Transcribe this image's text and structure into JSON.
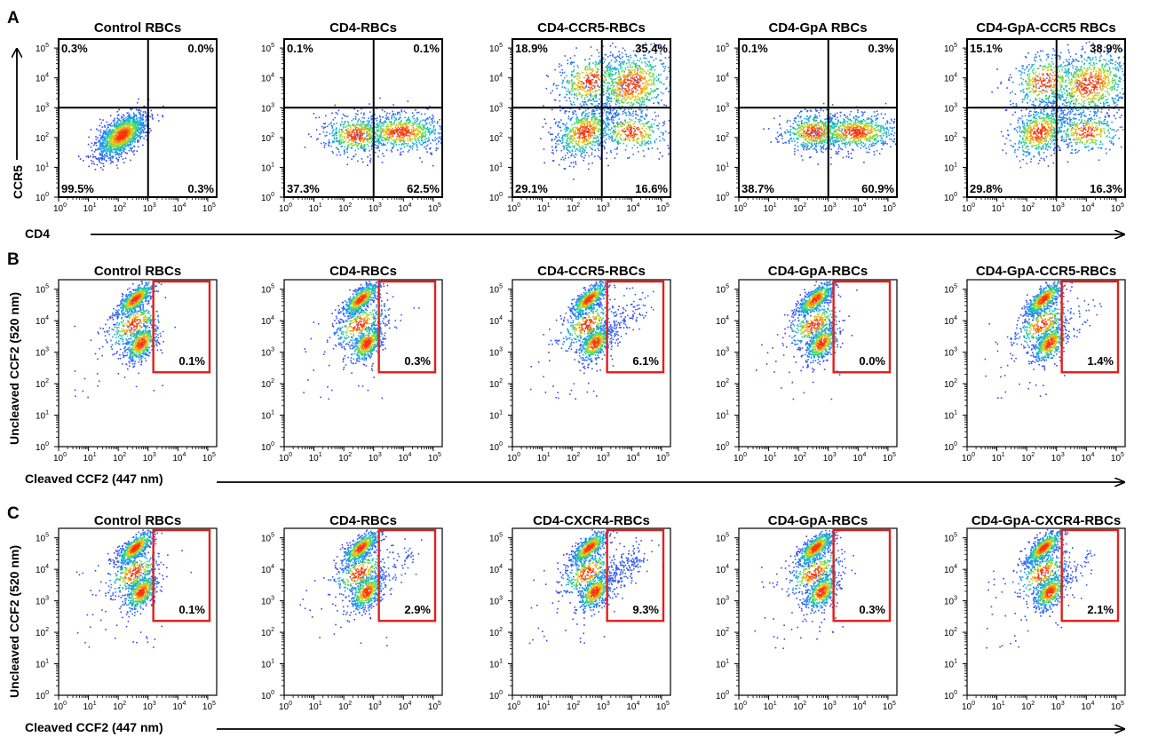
{
  "figure": {
    "panels": [
      {
        "letter": "A",
        "xlabel": "CD4",
        "ylabel": "CCR5",
        "kind": "quadrant",
        "plots": [
          {
            "title": "Control RBCs",
            "quadrants": {
              "ul": "0.3%",
              "ur": "0.0%",
              "ll": "99.5%",
              "lr": "0.3%"
            }
          },
          {
            "title": "CD4-RBCs",
            "quadrants": {
              "ul": "0.1%",
              "ur": "0.1%",
              "ll": "37.3%",
              "lr": "62.5%"
            }
          },
          {
            "title": "CD4-CCR5-RBCs",
            "quadrants": {
              "ul": "18.9%",
              "ur": "35.4%",
              "ll": "29.1%",
              "lr": "16.6%"
            }
          },
          {
            "title": "CD4-GpA RBCs",
            "quadrants": {
              "ul": "0.1%",
              "ur": "0.3%",
              "ll": "38.7%",
              "lr": "60.9%"
            }
          },
          {
            "title": "CD4-GpA-CCR5 RBCs",
            "quadrants": {
              "ul": "15.1%",
              "ur": "38.9%",
              "ll": "29.8%",
              "lr": "16.3%"
            }
          }
        ]
      },
      {
        "letter": "B",
        "xlabel": "Cleaved CCF2 (447 nm)",
        "ylabel": "Uncleaved CCF2 (520 nm)",
        "kind": "gate",
        "plots": [
          {
            "title": "Control RBCs",
            "gate_value": "0.1%"
          },
          {
            "title": "CD4-RBCs",
            "gate_value": "0.3%"
          },
          {
            "title": "CD4-CCR5-RBCs",
            "gate_value": "6.1%"
          },
          {
            "title": "CD4-GpA-RBCs",
            "gate_value": "0.0%"
          },
          {
            "title": "CD4-GpA-CCR5-RBCs",
            "gate_value": "1.4%"
          }
        ]
      },
      {
        "letter": "C",
        "xlabel": "Cleaved CCF2 (447 nm)",
        "ylabel": "Uncleaved CCF2 (520 nm)",
        "kind": "gate",
        "plots": [
          {
            "title": "Control RBCs",
            "gate_value": "0.1%"
          },
          {
            "title": "CD4-RBCs",
            "gate_value": "2.9%"
          },
          {
            "title": "CD4-CXCR4-RBCs",
            "gate_value": "9.3%"
          },
          {
            "title": "CD4-GpA-RBCs",
            "gate_value": "0.3%"
          },
          {
            "title": "CD4-GpA-CXCR4-RBCs",
            "gate_value": "2.1%"
          }
        ]
      }
    ],
    "tick_labels": [
      "10",
      "10",
      "10",
      "10",
      "10",
      "10"
    ],
    "tick_exponents": [
      "0",
      "1",
      "2",
      "3",
      "4",
      "5"
    ],
    "colors": {
      "gate": "#e0201b",
      "axis": "#000000",
      "density_low": "#3a3df0",
      "density_high": "#ff2a00"
    }
  },
  "chart_data": [
    {
      "type": "scatter",
      "panel": "A",
      "title": "Control RBCs",
      "xlabel": "CD4",
      "ylabel": "CCR5",
      "xscale": "log",
      "yscale": "log",
      "xlim": [
        1,
        200000
      ],
      "ylim": [
        1,
        200000
      ],
      "quadrant_gate": {
        "x": 1000,
        "y": 1000
      },
      "quadrants": {
        "ul": 0.3,
        "ur": 0.0,
        "ll": 99.5,
        "lr": 0.3
      }
    },
    {
      "type": "scatter",
      "panel": "A",
      "title": "CD4-RBCs",
      "xlabel": "CD4",
      "ylabel": "CCR5",
      "xscale": "log",
      "yscale": "log",
      "xlim": [
        1,
        200000
      ],
      "ylim": [
        1,
        200000
      ],
      "quadrant_gate": {
        "x": 1000,
        "y": 1000
      },
      "quadrants": {
        "ul": 0.1,
        "ur": 0.1,
        "ll": 37.3,
        "lr": 62.5
      }
    },
    {
      "type": "scatter",
      "panel": "A",
      "title": "CD4-CCR5-RBCs",
      "xlabel": "CD4",
      "ylabel": "CCR5",
      "xscale": "log",
      "yscale": "log",
      "xlim": [
        1,
        200000
      ],
      "ylim": [
        1,
        200000
      ],
      "quadrant_gate": {
        "x": 1000,
        "y": 1000
      },
      "quadrants": {
        "ul": 18.9,
        "ur": 35.4,
        "ll": 29.1,
        "lr": 16.6
      }
    },
    {
      "type": "scatter",
      "panel": "A",
      "title": "CD4-GpA RBCs",
      "xlabel": "CD4",
      "ylabel": "CCR5",
      "xscale": "log",
      "yscale": "log",
      "xlim": [
        1,
        200000
      ],
      "ylim": [
        1,
        200000
      ],
      "quadrant_gate": {
        "x": 1000,
        "y": 1000
      },
      "quadrants": {
        "ul": 0.1,
        "ur": 0.3,
        "ll": 38.7,
        "lr": 60.9
      }
    },
    {
      "type": "scatter",
      "panel": "A",
      "title": "CD4-GpA-CCR5 RBCs",
      "xlabel": "CD4",
      "ylabel": "CCR5",
      "xscale": "log",
      "yscale": "log",
      "xlim": [
        1,
        200000
      ],
      "ylim": [
        1,
        200000
      ],
      "quadrant_gate": {
        "x": 1000,
        "y": 1000
      },
      "quadrants": {
        "ul": 15.1,
        "ur": 38.9,
        "ll": 29.8,
        "lr": 16.3
      }
    },
    {
      "type": "scatter",
      "panel": "B",
      "title": "Control RBCs",
      "xlabel": "Cleaved CCF2 (447 nm)",
      "ylabel": "Uncleaved CCF2 (520 nm)",
      "xscale": "log",
      "yscale": "log",
      "xlim": [
        1,
        200000
      ],
      "ylim": [
        1,
        200000
      ],
      "gate": {
        "x": [
          1500,
          200000
        ],
        "y": [
          230,
          220000
        ]
      },
      "gate_percent": 0.1
    },
    {
      "type": "scatter",
      "panel": "B",
      "title": "CD4-RBCs",
      "xlabel": "Cleaved CCF2 (447 nm)",
      "ylabel": "Uncleaved CCF2 (520 nm)",
      "xscale": "log",
      "yscale": "log",
      "xlim": [
        1,
        200000
      ],
      "ylim": [
        1,
        200000
      ],
      "gate": {
        "x": [
          1500,
          200000
        ],
        "y": [
          230,
          220000
        ]
      },
      "gate_percent": 0.3
    },
    {
      "type": "scatter",
      "panel": "B",
      "title": "CD4-CCR5-RBCs",
      "xlabel": "Cleaved CCF2 (447 nm)",
      "ylabel": "Uncleaved CCF2 (520 nm)",
      "xscale": "log",
      "yscale": "log",
      "xlim": [
        1,
        200000
      ],
      "ylim": [
        1,
        200000
      ],
      "gate": {
        "x": [
          1500,
          200000
        ],
        "y": [
          230,
          220000
        ]
      },
      "gate_percent": 6.1
    },
    {
      "type": "scatter",
      "panel": "B",
      "title": "CD4-GpA-RBCs",
      "xlabel": "Cleaved CCF2 (447 nm)",
      "ylabel": "Uncleaved CCF2 (520 nm)",
      "xscale": "log",
      "yscale": "log",
      "xlim": [
        1,
        200000
      ],
      "ylim": [
        1,
        200000
      ],
      "gate": {
        "x": [
          1500,
          200000
        ],
        "y": [
          230,
          220000
        ]
      },
      "gate_percent": 0.0
    },
    {
      "type": "scatter",
      "panel": "B",
      "title": "CD4-GpA-CCR5-RBCs",
      "xlabel": "Cleaved CCF2 (447 nm)",
      "ylabel": "Uncleaved CCF2 (520 nm)",
      "xscale": "log",
      "yscale": "log",
      "xlim": [
        1,
        200000
      ],
      "ylim": [
        1,
        200000
      ],
      "gate": {
        "x": [
          1500,
          200000
        ],
        "y": [
          230,
          220000
        ]
      },
      "gate_percent": 1.4
    },
    {
      "type": "scatter",
      "panel": "C",
      "title": "Control RBCs",
      "xlabel": "Cleaved CCF2 (447 nm)",
      "ylabel": "Uncleaved CCF2 (520 nm)",
      "xscale": "log",
      "yscale": "log",
      "xlim": [
        1,
        200000
      ],
      "ylim": [
        1,
        200000
      ],
      "gate": {
        "x": [
          1500,
          200000
        ],
        "y": [
          230,
          220000
        ]
      },
      "gate_percent": 0.1
    },
    {
      "type": "scatter",
      "panel": "C",
      "title": "CD4-RBCs",
      "xlabel": "Cleaved CCF2 (447 nm)",
      "ylabel": "Uncleaved CCF2 (520 nm)",
      "xscale": "log",
      "yscale": "log",
      "xlim": [
        1,
        200000
      ],
      "ylim": [
        1,
        200000
      ],
      "gate": {
        "x": [
          1500,
          200000
        ],
        "y": [
          230,
          220000
        ]
      },
      "gate_percent": 2.9
    },
    {
      "type": "scatter",
      "panel": "C",
      "title": "CD4-CXCR4-RBCs",
      "xlabel": "Cleaved CCF2 (447 nm)",
      "ylabel": "Uncleaved CCF2 (520 nm)",
      "xscale": "log",
      "yscale": "log",
      "xlim": [
        1,
        200000
      ],
      "ylim": [
        1,
        200000
      ],
      "gate": {
        "x": [
          1500,
          200000
        ],
        "y": [
          230,
          220000
        ]
      },
      "gate_percent": 9.3
    },
    {
      "type": "scatter",
      "panel": "C",
      "title": "CD4-GpA-RBCs",
      "xlabel": "Cleaved CCF2 (447 nm)",
      "ylabel": "Uncleaved CCF2 (520 nm)",
      "xscale": "log",
      "yscale": "log",
      "xlim": [
        1,
        200000
      ],
      "ylim": [
        1,
        200000
      ],
      "gate": {
        "x": [
          1500,
          200000
        ],
        "y": [
          230,
          220000
        ]
      },
      "gate_percent": 0.3
    },
    {
      "type": "scatter",
      "panel": "C",
      "title": "CD4-GpA-CXCR4-RBCs",
      "xlabel": "Cleaved CCF2 (447 nm)",
      "ylabel": "Uncleaved CCF2 (520 nm)",
      "xscale": "log",
      "yscale": "log",
      "xlim": [
        1,
        200000
      ],
      "ylim": [
        1,
        200000
      ],
      "gate": {
        "x": [
          1500,
          200000
        ],
        "y": [
          230,
          220000
        ]
      },
      "gate_percent": 2.1
    }
  ]
}
